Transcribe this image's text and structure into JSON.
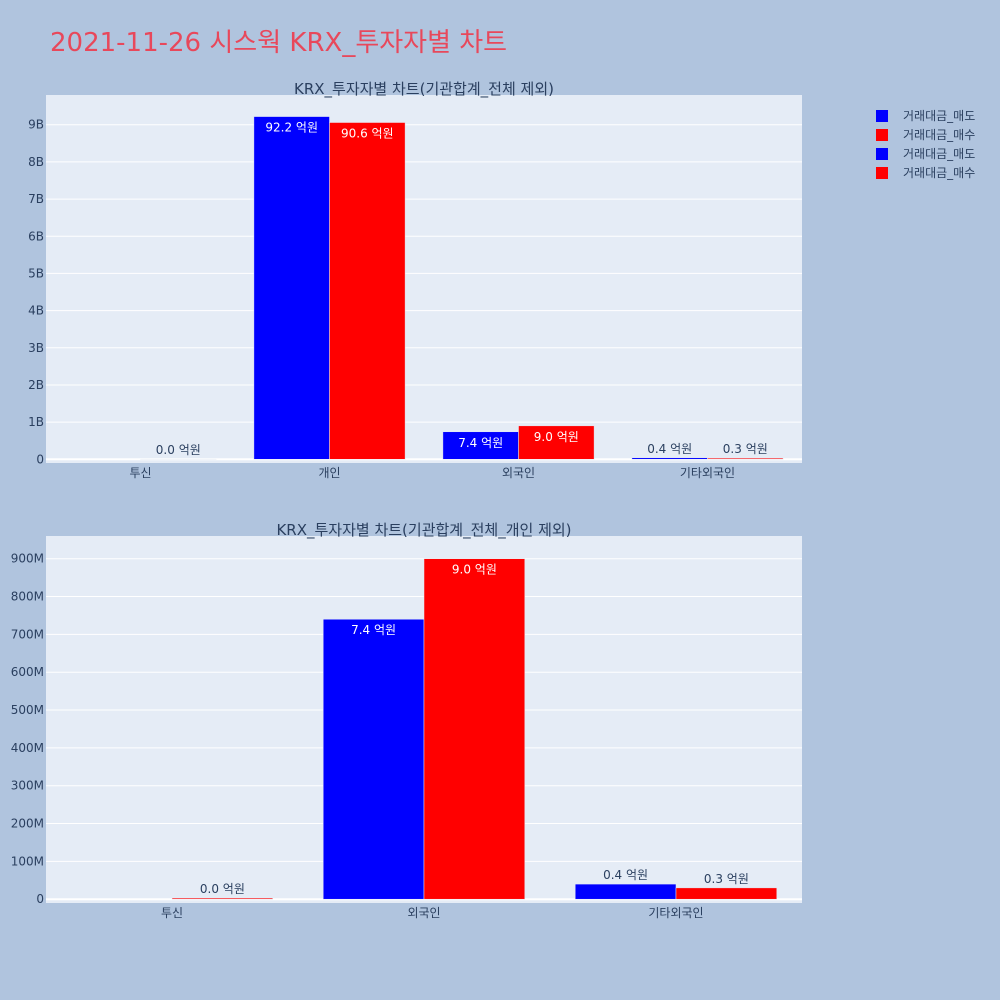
{
  "page": {
    "title": "2021-11-26 시스웍 KRX_투자자별 차트"
  },
  "colors": {
    "sell": "#0000ff",
    "buy": "#ff0000",
    "plot_bg": "#e5ecf6",
    "title": "#e8485b",
    "text": "#2a3f5f"
  },
  "legend": [
    {
      "label": "거래대금_매도",
      "color": "#0000ff"
    },
    {
      "label": "거래대금_매수",
      "color": "#ff0000"
    },
    {
      "label": "거래대금_매도",
      "color": "#0000ff"
    },
    {
      "label": "거래대금_매수",
      "color": "#ff0000"
    }
  ],
  "chart_data": [
    {
      "type": "bar",
      "title": "KRX_투자자별 차트(기관합계_전체 제외)",
      "categories": [
        "투신",
        "개인",
        "외국인",
        "기타외국인"
      ],
      "series": [
        {
          "name": "거래대금_매도",
          "values": [
            0,
            9220000000,
            740000000,
            40000000
          ],
          "labels": [
            "",
            "92.2 억원",
            "7.4 억원",
            "0.4 억원"
          ]
        },
        {
          "name": "거래대금_매수",
          "values": [
            3000000,
            9060000000,
            900000000,
            30000000
          ],
          "labels": [
            "0.0 억원",
            "90.6 억원",
            "9.0 억원",
            "0.3 억원"
          ]
        }
      ],
      "yticks": [
        0,
        1000000000,
        2000000000,
        3000000000,
        4000000000,
        5000000000,
        6000000000,
        7000000000,
        8000000000,
        9000000000
      ],
      "yticklabels": [
        "0",
        "1B",
        "2B",
        "3B",
        "4B",
        "5B",
        "6B",
        "7B",
        "8B",
        "9B"
      ],
      "ylim": [
        -100000000,
        9800000000
      ],
      "grid": true
    },
    {
      "type": "bar",
      "title": "KRX_투자자별 차트(기관합계_전체_개인 제외)",
      "categories": [
        "투신",
        "외국인",
        "기타외국인"
      ],
      "series": [
        {
          "name": "거래대금_매도",
          "values": [
            0,
            740000000,
            40000000
          ],
          "labels": [
            "",
            "7.4 억원",
            "0.4 억원"
          ]
        },
        {
          "name": "거래대금_매수",
          "values": [
            3000000,
            900000000,
            30000000
          ],
          "labels": [
            "0.0 억원",
            "9.0 억원",
            "0.3 억원"
          ]
        }
      ],
      "yticks": [
        0,
        100000000,
        200000000,
        300000000,
        400000000,
        500000000,
        600000000,
        700000000,
        800000000,
        900000000
      ],
      "yticklabels": [
        "0",
        "100M",
        "200M",
        "300M",
        "400M",
        "500M",
        "600M",
        "700M",
        "800M",
        "900M"
      ],
      "ylim": [
        -10000000,
        960000000
      ],
      "grid": true
    }
  ]
}
